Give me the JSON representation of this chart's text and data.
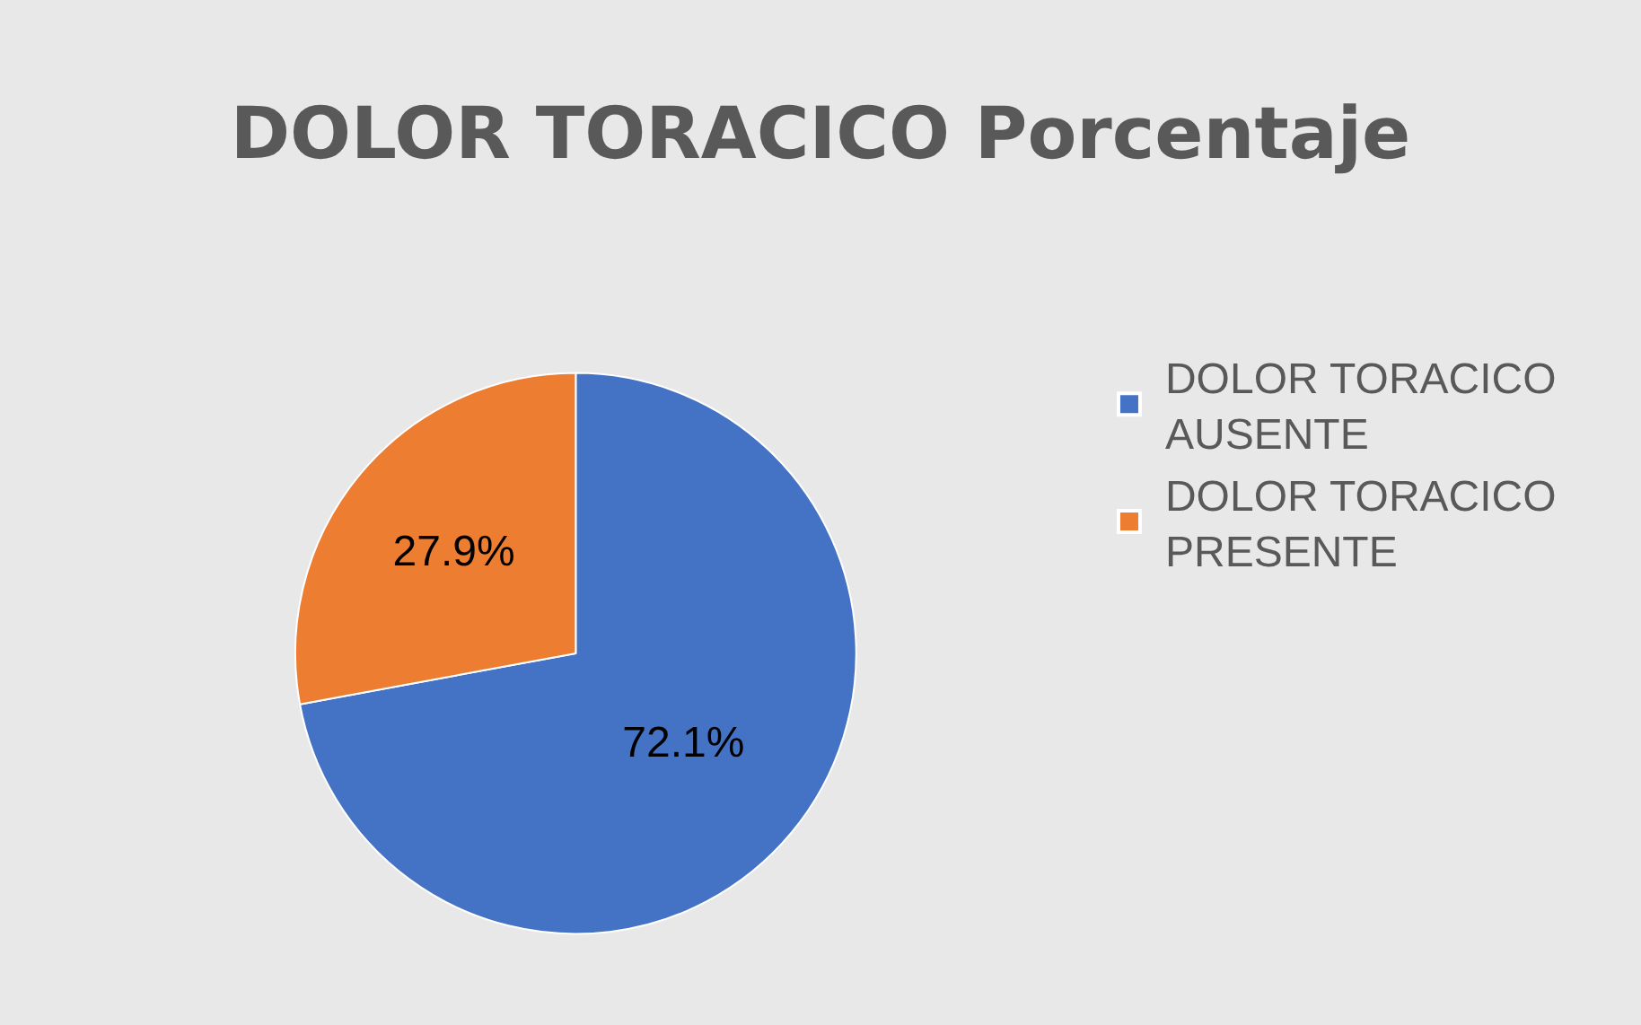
{
  "chart_data": {
    "type": "pie",
    "title": "DOLOR TORACICO Porcentaje",
    "categories": [
      "DOLOR TORACICO AUSENTE",
      "DOLOR TORACICO PRESENTE"
    ],
    "values": [
      72.1,
      27.9
    ],
    "colors": [
      "#4472c4",
      "#ed7d31"
    ],
    "value_labels": [
      "72.1%",
      "27.9%"
    ],
    "legend": "right"
  }
}
